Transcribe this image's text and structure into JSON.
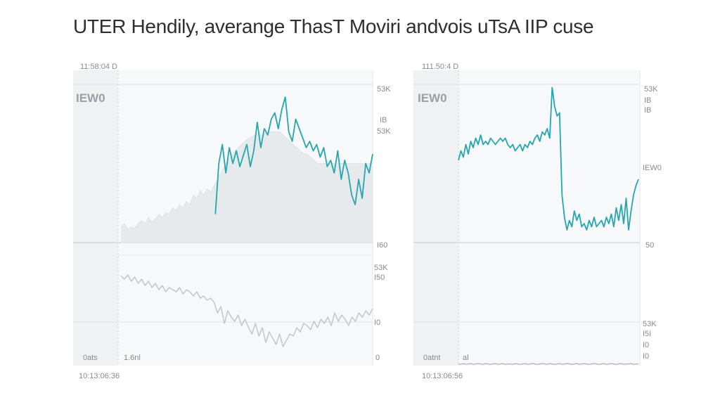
{
  "title": "UTER Hendily, averange ThasT Moviri andvois uTsA IIP cuse",
  "colors": {
    "series": "#26a6ad",
    "faded": "#bdbdbd",
    "area": "#e4e8ea",
    "panel_bg": "#f4f5f6",
    "grid": "#d7dbdd"
  },
  "chart_data": [
    {
      "type": "line",
      "panel_label": "IEW0",
      "top_left_label": "11:58:04 D",
      "bottom_left_label": "10:13:06:36",
      "lower_left_labels": [
        "0ats",
        "1.6nl"
      ],
      "right_ticks_upper": [
        "53K",
        "IB",
        "53K",
        "I60"
      ],
      "right_ticks_lower": [
        "53K",
        "I50",
        "I0",
        "0"
      ],
      "ylim": [
        0,
        100
      ],
      "series": [
        {
          "values": [
            null,
            null,
            null,
            null,
            null,
            null,
            null,
            null,
            null,
            null,
            null,
            null,
            null,
            null,
            null,
            null,
            null,
            null,
            null,
            null,
            null,
            null,
            null,
            null,
            null,
            null,
            null,
            18,
            50,
            62,
            44,
            60,
            50,
            58,
            48,
            55,
            62,
            48,
            58,
            76,
            60,
            72,
            68,
            78,
            82,
            72,
            84,
            92,
            70,
            64,
            78,
            72,
            66,
            60,
            64,
            58,
            62,
            54,
            60,
            48,
            52,
            44,
            58,
            40,
            52,
            44,
            30,
            24,
            40,
            28,
            50,
            44,
            56
          ]
        },
        {
          "values": [
            10,
            12,
            8,
            10,
            9,
            12,
            14,
            12,
            16,
            13,
            15,
            18,
            16,
            19,
            18,
            22,
            20,
            24,
            22,
            26,
            24,
            30,
            28,
            33,
            30,
            34,
            32,
            36,
            40,
            44,
            48,
            52,
            54,
            58,
            60,
            62,
            64,
            66,
            67,
            68,
            68,
            68,
            69,
            70,
            70,
            70,
            70,
            68,
            66,
            64,
            62,
            60,
            58,
            56,
            56,
            54,
            52,
            50,
            50,
            50,
            50,
            50,
            50,
            50,
            50,
            50,
            50,
            50,
            50,
            50,
            50,
            50,
            50,
            50
          ]
        },
        {
          "values": [
            85,
            82,
            86,
            80,
            84,
            78,
            82,
            76,
            80,
            74,
            78,
            72,
            76,
            70,
            74,
            72,
            70,
            74,
            68,
            72,
            70,
            66,
            70,
            64,
            66,
            62,
            64,
            60,
            50,
            56,
            40,
            52,
            46,
            42,
            48,
            38,
            44,
            36,
            30,
            40,
            28,
            36,
            22,
            32,
            26,
            20,
            30,
            18,
            24,
            30,
            28,
            36,
            32,
            40,
            38,
            34,
            42,
            36,
            44,
            40,
            46,
            38,
            50,
            42,
            48,
            44,
            38,
            46,
            42,
            50,
            46,
            52,
            48,
            54
          ]
        }
      ]
    },
    {
      "type": "line",
      "panel_label": "IEW0",
      "top_left_label": "111.50:4 D",
      "bottom_left_label": "10:13:06:56",
      "lower_left_labels": [
        "0atnt",
        "al"
      ],
      "right_ticks_upper": [
        "53K",
        "IB",
        "IB",
        "IEW0",
        "50"
      ],
      "right_ticks_lower": [
        "53K",
        "I5I",
        "I0",
        "I0"
      ],
      "ylim": [
        0,
        100
      ],
      "series": [
        {
          "values": [
            52,
            58,
            54,
            62,
            56,
            64,
            60,
            66,
            62,
            68,
            62,
            64,
            62,
            66,
            64,
            62,
            64,
            66,
            64,
            66,
            62,
            60,
            62,
            58,
            60,
            62,
            58,
            62,
            60,
            64,
            62,
            66,
            68,
            64,
            70,
            68,
            72,
            66,
            98,
            86,
            80,
            82,
            30,
            16,
            8,
            14,
            10,
            20,
            14,
            18,
            10,
            12,
            8,
            14,
            10,
            16,
            10,
            12,
            14,
            10,
            16,
            12,
            18,
            10,
            22,
            14,
            24,
            12,
            28,
            8,
            20,
            30,
            36,
            40
          ]
        },
        {
          "values": [
            4,
            3,
            5,
            3,
            4,
            5,
            3,
            4,
            5,
            4,
            3,
            5,
            4,
            3,
            4,
            5,
            3,
            4,
            5,
            3,
            4,
            4,
            3,
            5,
            4,
            3,
            4,
            5,
            3,
            4,
            5,
            4,
            3,
            4,
            5,
            4,
            3,
            5,
            4,
            3,
            4,
            5,
            3,
            4,
            5,
            4,
            3,
            4,
            5,
            3,
            4,
            5,
            4,
            3,
            4,
            5,
            4,
            3,
            4,
            5,
            3,
            4,
            5,
            4,
            3,
            4,
            5,
            3,
            4,
            4,
            5,
            3,
            4,
            4
          ]
        }
      ]
    }
  ]
}
